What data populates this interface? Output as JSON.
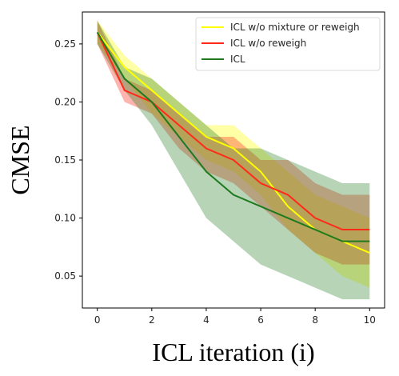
{
  "chart_data": {
    "type": "line",
    "xlabel": "ICL iteration (i)",
    "ylabel": "CMSE",
    "xlim": [
      -0.55,
      10.55
    ],
    "ylim": [
      0.0225,
      0.2775
    ],
    "xticks": [
      0,
      2,
      4,
      6,
      8,
      10
    ],
    "yticks": [
      0.05,
      0.1,
      0.15,
      0.2,
      0.25
    ],
    "xtick_labels": [
      "0",
      "2",
      "4",
      "6",
      "8",
      "10"
    ],
    "ytick_labels": [
      "0.05",
      "0.10",
      "0.15",
      "0.20",
      "0.25"
    ],
    "grid": false,
    "legend_position": "top-right",
    "x": [
      0,
      1,
      2,
      3,
      4,
      5,
      6,
      7,
      8,
      9,
      10
    ],
    "series": [
      {
        "name": "ICL w/o mixture or reweigh",
        "color": "#ffff00",
        "values": [
          0.26,
          0.23,
          0.21,
          0.19,
          0.17,
          0.16,
          0.14,
          0.11,
          0.09,
          0.08,
          0.07
        ],
        "upper": [
          0.27,
          0.24,
          0.22,
          0.2,
          0.18,
          0.18,
          0.16,
          0.14,
          0.12,
          0.11,
          0.1
        ],
        "lower": [
          0.25,
          0.22,
          0.19,
          0.17,
          0.15,
          0.14,
          0.12,
          0.09,
          0.07,
          0.05,
          0.04
        ]
      },
      {
        "name": "ICL w/o reweigh",
        "color": "#ff2a1a",
        "values": [
          0.26,
          0.21,
          0.2,
          0.18,
          0.16,
          0.15,
          0.13,
          0.12,
          0.1,
          0.09,
          0.09
        ],
        "upper": [
          0.27,
          0.22,
          0.21,
          0.19,
          0.17,
          0.17,
          0.15,
          0.15,
          0.13,
          0.12,
          0.12
        ],
        "lower": [
          0.25,
          0.2,
          0.19,
          0.16,
          0.14,
          0.13,
          0.11,
          0.09,
          0.07,
          0.06,
          0.06
        ]
      },
      {
        "name": "ICL",
        "color": "#1f7a1f",
        "values": [
          0.26,
          0.22,
          0.2,
          0.17,
          0.14,
          0.12,
          0.11,
          0.1,
          0.09,
          0.08,
          0.08
        ],
        "upper": [
          0.27,
          0.23,
          0.22,
          0.2,
          0.18,
          0.16,
          0.16,
          0.15,
          0.14,
          0.13,
          0.13
        ],
        "lower": [
          0.25,
          0.21,
          0.18,
          0.14,
          0.1,
          0.08,
          0.06,
          0.05,
          0.04,
          0.03,
          0.03
        ]
      }
    ]
  }
}
